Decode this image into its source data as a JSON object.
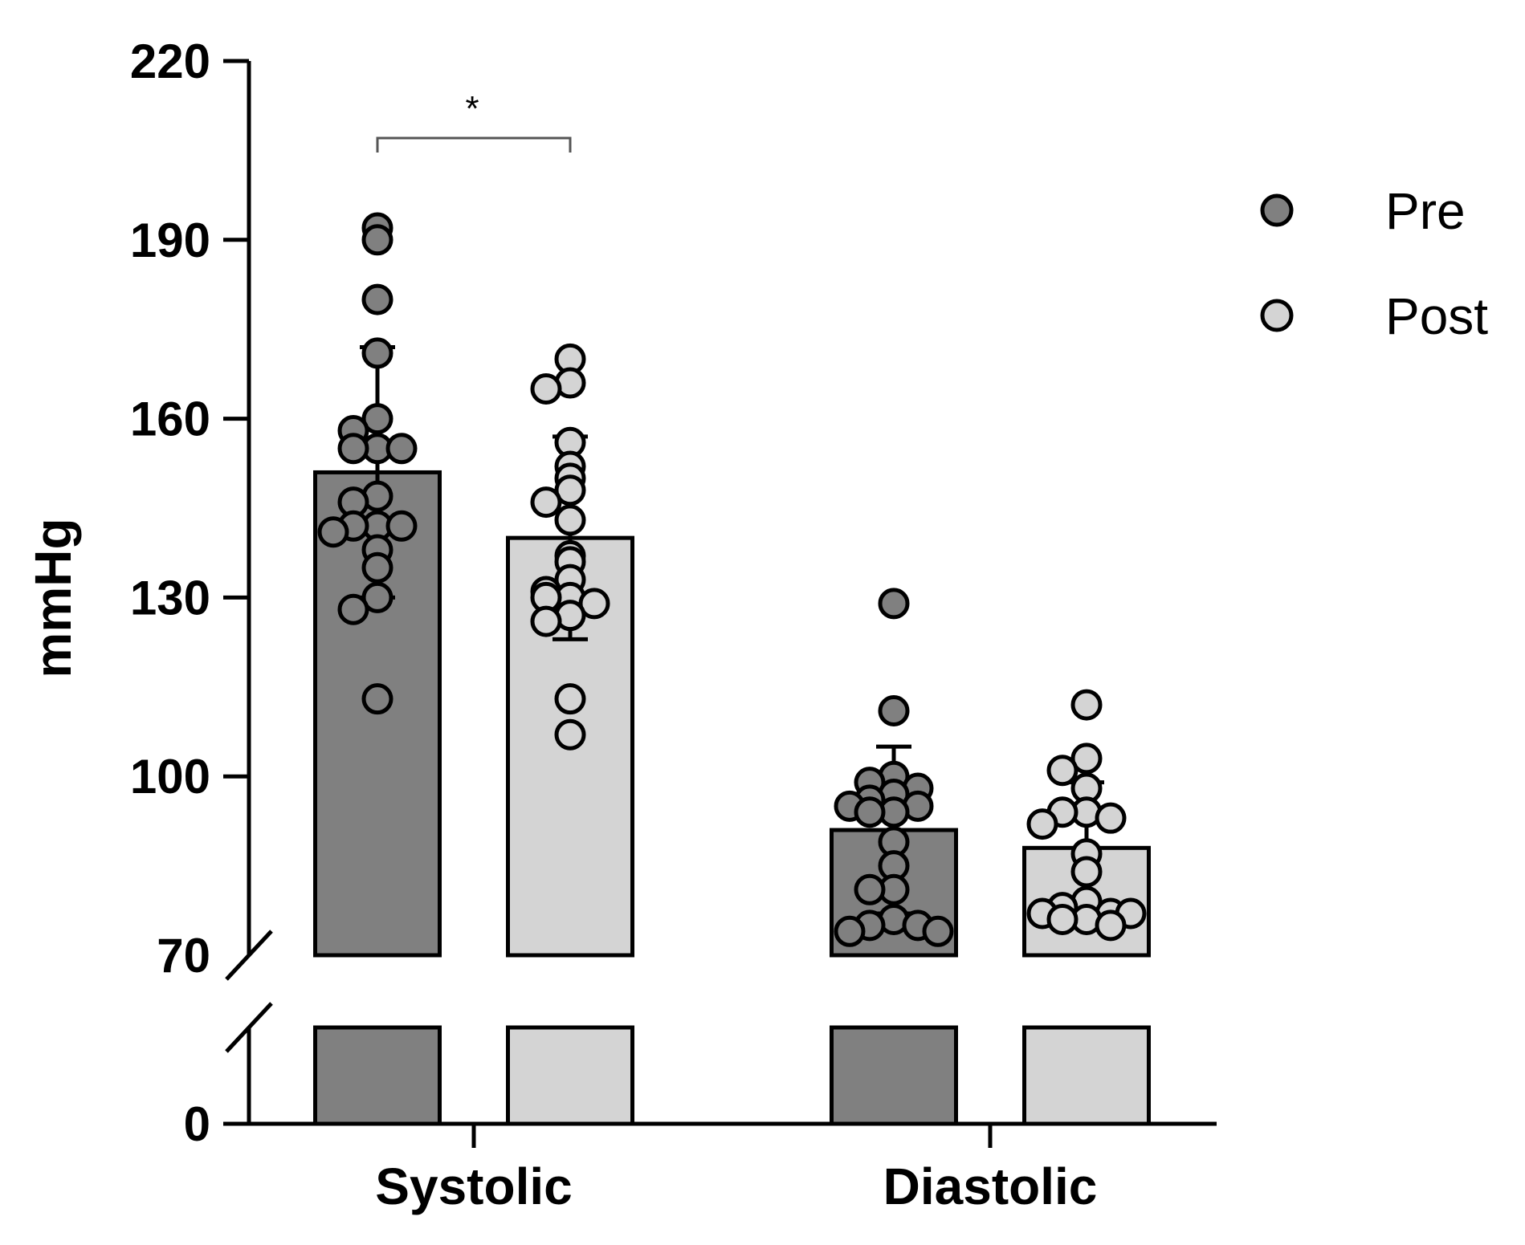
{
  "chart_data": {
    "type": "bar",
    "title": "",
    "xlabel": "",
    "ylabel": "mmHg",
    "ylim": [
      0,
      220
    ],
    "axis_break": [
      0,
      70
    ],
    "yticks": [
      "0",
      "70",
      "100",
      "130",
      "160",
      "190",
      "220"
    ],
    "categories": [
      "Systolic",
      "Diastolic"
    ],
    "legend_position": "top-right",
    "series": [
      {
        "name": "Pre",
        "color": "#808080",
        "values": [
          151,
          91
        ],
        "sd": [
          21,
          14
        ],
        "points": [
          [
            192,
            190,
            180,
            171,
            160,
            158,
            155,
            155,
            155,
            147,
            146,
            142,
            142,
            142,
            141,
            138,
            135,
            130,
            128,
            113
          ],
          [
            129,
            111,
            100,
            99,
            98,
            97,
            96,
            95,
            95,
            94,
            94,
            89,
            85,
            81,
            81,
            76,
            75,
            75,
            74,
            74
          ]
        ]
      },
      {
        "name": "Post",
        "color": "#d4d4d4",
        "values": [
          140,
          88
        ],
        "sd": [
          17,
          11
        ],
        "points": [
          [
            170,
            166,
            165,
            156,
            152,
            150,
            148,
            146,
            143,
            137,
            136,
            133,
            131,
            130,
            130,
            129,
            127,
            126,
            113,
            107
          ],
          [
            112,
            103,
            101,
            98,
            94,
            94,
            93,
            92,
            87,
            84,
            79,
            78,
            77,
            77,
            77,
            76,
            76,
            75
          ]
        ]
      }
    ],
    "significance": [
      {
        "category": "Systolic",
        "label": "*"
      }
    ]
  }
}
